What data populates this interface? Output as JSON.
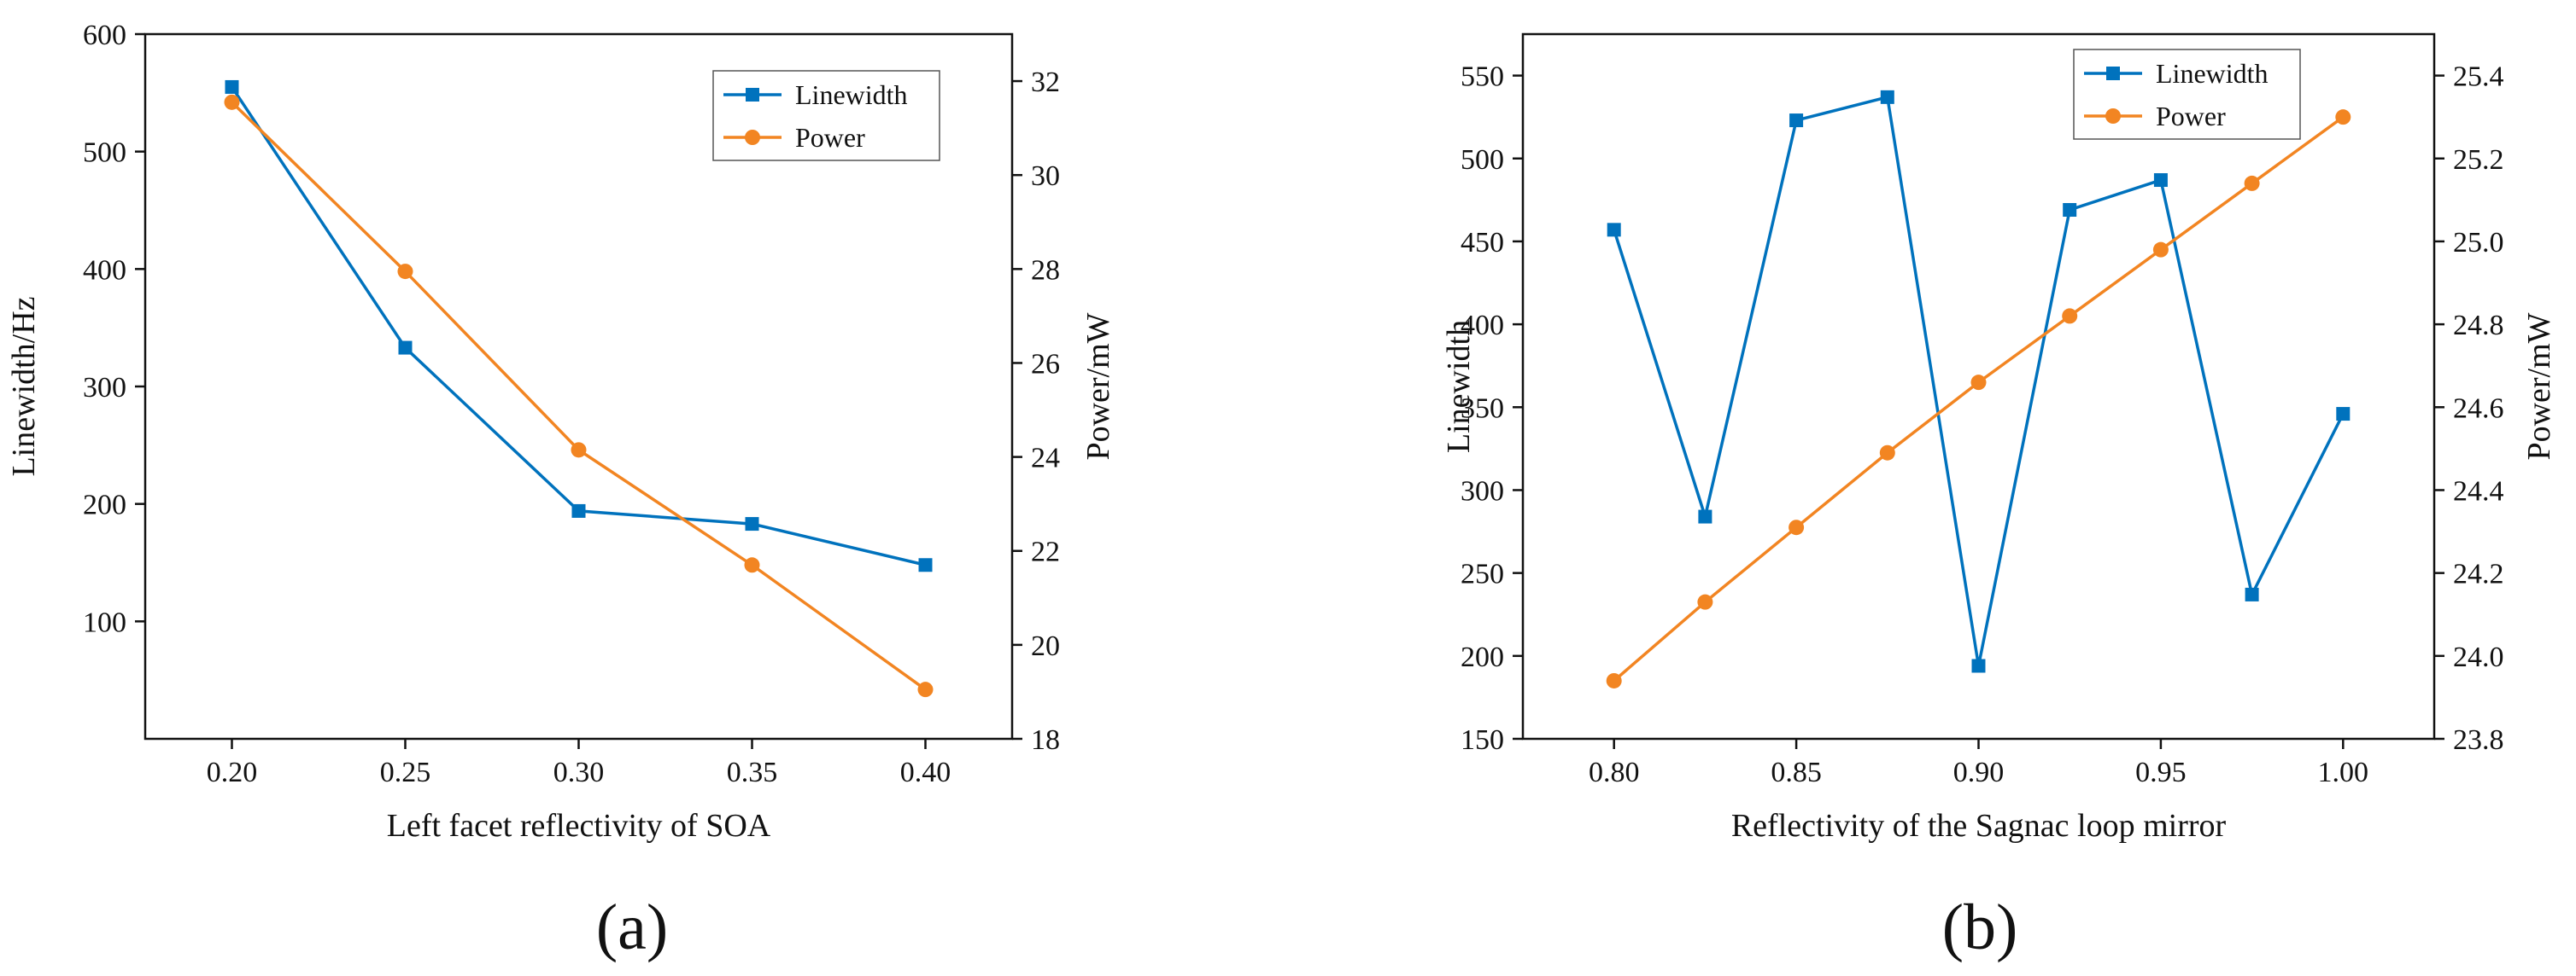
{
  "chart_data": [
    {
      "panel_label": "(a)",
      "type": "line",
      "x": [
        0.2,
        0.25,
        0.3,
        0.35,
        0.4
      ],
      "x_tick_labels": [
        "0.20",
        "0.25",
        "0.30",
        "0.35",
        "0.40"
      ],
      "xlabel": "Left facet  reflectivity of SOA",
      "xlim": [
        0.175,
        0.425
      ],
      "ylabel_left": "Linewidth/Hz",
      "ylim_left": [
        0,
        600
      ],
      "y_ticks_left": [
        100,
        200,
        300,
        400,
        500,
        600
      ],
      "y_tick_labels_left": [
        "100",
        "200",
        "300",
        "400",
        "500",
        "600"
      ],
      "ylabel_right": "Power/mW",
      "ylim_right": [
        18,
        33
      ],
      "y_ticks_right": [
        18,
        20,
        22,
        24,
        26,
        28,
        30,
        32
      ],
      "y_tick_labels_right": [
        "18",
        "20",
        "22",
        "24",
        "26",
        "28",
        "30",
        "32"
      ],
      "legend_position": "top-right",
      "series": [
        {
          "name": "Linewidth",
          "axis": "left",
          "marker": "square",
          "color": "#0072BD",
          "values": [
            555,
            333,
            194,
            183,
            148
          ]
        },
        {
          "name": "Power",
          "axis": "right",
          "marker": "circle",
          "color": "#F28522",
          "values": [
            31.55,
            27.95,
            24.15,
            21.7,
            19.05
          ]
        }
      ]
    },
    {
      "panel_label": "(b)",
      "type": "line",
      "x": [
        0.8,
        0.825,
        0.85,
        0.875,
        0.9,
        0.925,
        0.95,
        0.975,
        1.0
      ],
      "x_ticks": [
        0.8,
        0.85,
        0.9,
        0.95,
        1.0
      ],
      "x_tick_labels": [
        "0.80",
        "0.85",
        "0.90",
        "0.95",
        "1.00"
      ],
      "xlabel": "Reflectivity of the Sagnac loop mirror",
      "xlim": [
        0.775,
        1.025
      ],
      "ylabel_left": "Linewidth",
      "ylim_left": [
        150,
        575
      ],
      "y_ticks_left": [
        150,
        200,
        250,
        300,
        350,
        400,
        450,
        500,
        550
      ],
      "y_tick_labels_left": [
        "150",
        "200",
        "250",
        "300",
        "350",
        "400",
        "450",
        "500",
        "550"
      ],
      "ylabel_right": "Power/mW",
      "ylim_right": [
        23.8,
        25.5
      ],
      "y_ticks_right": [
        23.8,
        24.0,
        24.2,
        24.4,
        24.6,
        24.8,
        25.0,
        25.2,
        25.4
      ],
      "y_tick_labels_right": [
        "23.8",
        "24.0",
        "24.2",
        "24.4",
        "24.6",
        "24.8",
        "25.0",
        "25.2",
        "25.4"
      ],
      "legend_position": "top-right",
      "series": [
        {
          "name": "Linewidth",
          "axis": "left",
          "marker": "square",
          "color": "#0072BD",
          "values": [
            457,
            284,
            523,
            537,
            194,
            469,
            487,
            237,
            346
          ]
        },
        {
          "name": "Power",
          "axis": "right",
          "marker": "circle",
          "color": "#F28522",
          "values": [
            23.94,
            24.13,
            24.31,
            24.49,
            24.66,
            24.82,
            24.98,
            25.14,
            25.3
          ]
        }
      ]
    }
  ]
}
